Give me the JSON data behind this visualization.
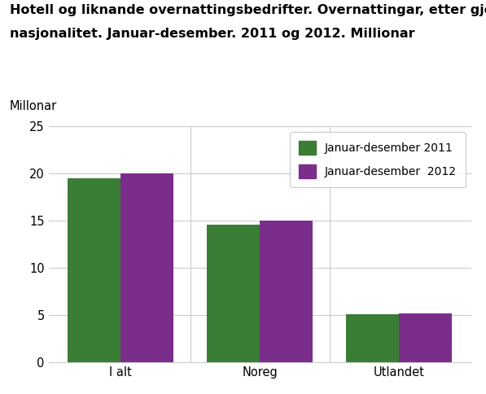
{
  "title_line1": "Hotell og liknande overnattingsbedrifter. Overnattingar, etter gjestane sin",
  "title_line2": "nasjonalitet. Januar-desember. 2011 og 2012. Millionar",
  "ylabel": "Millonar",
  "categories": [
    "I alt",
    "Noreg",
    "Utlandet"
  ],
  "values_2011": [
    19.5,
    14.6,
    5.1
  ],
  "values_2012": [
    20.0,
    15.0,
    5.2
  ],
  "color_2011": "#3a7d35",
  "color_2012": "#7b2d8b",
  "legend_2011": "Januar-desember 2011",
  "legend_2012": "Januar-desember  2012",
  "ylim": [
    0,
    25
  ],
  "yticks": [
    0,
    5,
    10,
    15,
    20,
    25
  ],
  "bar_width": 0.38,
  "background_color": "#ffffff",
  "grid_color": "#cccccc",
  "title_fontsize": 11.5,
  "axis_fontsize": 10.5,
  "legend_fontsize": 10
}
